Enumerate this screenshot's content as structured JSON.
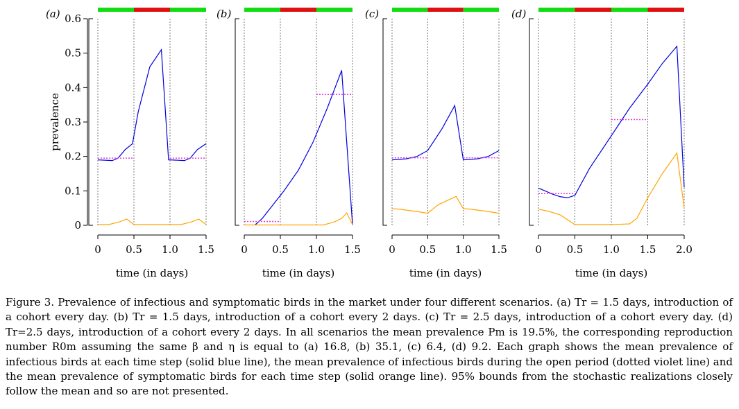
{
  "colors": {
    "infectious": "#0000dd",
    "open_mean": "#e040e0",
    "symptomatic": "#ffa500",
    "open_bar": "#11dd11",
    "closed_bar": "#dd1111"
  },
  "y_axis": {
    "label": "prevalence",
    "ticks": [
      "0",
      "0.1",
      "0.2",
      "0.3",
      "0.4",
      "0.5",
      "0.6"
    ]
  },
  "caption": {
    "figure_label": "Figure 3.",
    "text": "Prevalence of infectious and symptomatic birds in the market under four different scenarios. (a) Tr = 1.5 days, introduction of a cohort every day. (b) Tr = 1.5 days, introduction of a cohort every 2 days. (c) Tr = 2.5 days, introduction of a cohort every day. (d) Tr=2.5 days, introduction of a cohort every 2 days. In all scenarios the mean prevalence Pm is 19.5%, the corresponding reproduction number R0m assuming the same β and η is equal to (a) 16.8, (b) 35.1, (c) 6.4, (d) 9.2. Each graph shows the mean prevalence of infectious birds at each time step (solid blue line), the mean prevalence of infectious birds during the open period (dotted violet line) and the mean prevalence of symptomatic birds for each time step (solid orange line). 95% bounds from the stochastic realizations closely follow the mean and so are not presented."
  },
  "chart_data": [
    {
      "type": "line",
      "panel": "(a)",
      "xlabel": "time (in days)",
      "ylabel": "prevalence",
      "xlim": [
        0,
        1.5
      ],
      "ylim": [
        0,
        0.6
      ],
      "x_ticks": [
        "0",
        "0.5",
        "1.0",
        "1.5"
      ],
      "day_boundaries": [
        0,
        0.5,
        1.0,
        1.5
      ],
      "market_state": [
        "open",
        "closed",
        "open"
      ],
      "series": [
        {
          "name": "infectious",
          "x": [
            0,
            0.2,
            0.28,
            0.38,
            0.48,
            0.56,
            0.72,
            0.88,
            0.98,
            1.0,
            1.2,
            1.28,
            1.38,
            1.5
          ],
          "y": [
            0.19,
            0.188,
            0.195,
            0.22,
            0.237,
            0.33,
            0.46,
            0.51,
            0.19,
            0.19,
            0.188,
            0.195,
            0.22,
            0.237
          ]
        },
        {
          "name": "symptomatic",
          "x": [
            0,
            0.15,
            0.3,
            0.4,
            0.5,
            1.0,
            1.15,
            1.3,
            1.4,
            1.5
          ],
          "y": [
            0.002,
            0.002,
            0.01,
            0.018,
            0.002,
            0.002,
            0.002,
            0.01,
            0.018,
            0.002
          ]
        },
        {
          "name": "open-period mean",
          "segments": [
            {
              "x": [
                0,
                0.5
              ],
              "y": 0.195
            },
            {
              "x": [
                1.0,
                1.5
              ],
              "y": 0.195
            }
          ]
        }
      ]
    },
    {
      "type": "line",
      "panel": "(b)",
      "xlabel": "time (in days)",
      "ylabel": "prevalence",
      "xlim": [
        0,
        1.5
      ],
      "ylim": [
        0,
        0.6
      ],
      "x_ticks": [
        "0",
        "0.5",
        "1.0",
        "1.5"
      ],
      "day_boundaries": [
        0,
        0.5,
        1.0,
        1.5
      ],
      "market_state": [
        "open",
        "closed",
        "open"
      ],
      "series": [
        {
          "name": "infectious",
          "x": [
            0.15,
            0.25,
            0.4,
            0.55,
            0.75,
            0.95,
            1.15,
            1.35,
            1.5
          ],
          "y": [
            0.001,
            0.02,
            0.06,
            0.1,
            0.16,
            0.24,
            0.34,
            0.45,
            0.002
          ]
        },
        {
          "name": "symptomatic",
          "x": [
            0,
            1.1,
            1.25,
            1.35,
            1.42,
            1.5
          ],
          "y": [
            0.001,
            0.001,
            0.01,
            0.02,
            0.036,
            0.002
          ]
        },
        {
          "name": "open-period mean",
          "segments": [
            {
              "x": [
                0,
                0.5
              ],
              "y": 0.011
            },
            {
              "x": [
                1.0,
                1.5
              ],
              "y": 0.38
            }
          ]
        }
      ]
    },
    {
      "type": "line",
      "panel": "(c)",
      "xlabel": "time (in days)",
      "ylabel": "prevalence",
      "xlim": [
        0,
        1.5
      ],
      "ylim": [
        0,
        0.6
      ],
      "x_ticks": [
        "0",
        "0.5",
        "1.0",
        "1.5"
      ],
      "day_boundaries": [
        0,
        0.5,
        1.0,
        1.5
      ],
      "market_state": [
        "open",
        "closed",
        "open"
      ],
      "series": [
        {
          "name": "infectious",
          "x": [
            0,
            0.2,
            0.35,
            0.5,
            0.7,
            0.88,
            1.0,
            1.2,
            1.35,
            1.5
          ],
          "y": [
            0.19,
            0.193,
            0.2,
            0.217,
            0.28,
            0.348,
            0.19,
            0.193,
            0.2,
            0.217
          ]
        },
        {
          "name": "symptomatic",
          "x": [
            0,
            0.1,
            0.2,
            0.35,
            0.5,
            0.65,
            0.9,
            1.0,
            1.1,
            1.2,
            1.35,
            1.5
          ],
          "y": [
            0.048,
            0.047,
            0.044,
            0.04,
            0.035,
            0.06,
            0.084,
            0.048,
            0.047,
            0.044,
            0.04,
            0.035
          ]
        },
        {
          "name": "open-period mean",
          "segments": [
            {
              "x": [
                0,
                0.5
              ],
              "y": 0.196
            },
            {
              "x": [
                1.0,
                1.5
              ],
              "y": 0.196
            }
          ]
        }
      ]
    },
    {
      "type": "line",
      "panel": "(d)",
      "xlabel": "time (in days)",
      "ylabel": "prevalence",
      "xlim": [
        0,
        2.0
      ],
      "ylim": [
        0,
        0.6
      ],
      "x_ticks": [
        "0",
        "0.5",
        "1.0",
        "1.5",
        "2.0"
      ],
      "day_boundaries": [
        0,
        0.5,
        1.0,
        1.5,
        2.0
      ],
      "market_state": [
        "open",
        "closed",
        "open",
        "closed"
      ],
      "series": [
        {
          "name": "infectious",
          "x": [
            0,
            0.2,
            0.3,
            0.4,
            0.5,
            0.7,
            1.0,
            1.25,
            1.5,
            1.7,
            1.9,
            2.0
          ],
          "y": [
            0.108,
            0.09,
            0.083,
            0.08,
            0.087,
            0.165,
            0.26,
            0.34,
            0.41,
            0.47,
            0.52,
            0.11
          ]
        },
        {
          "name": "symptomatic",
          "x": [
            0,
            0.15,
            0.3,
            0.5,
            1.0,
            1.25,
            1.35,
            1.5,
            1.7,
            1.9,
            2.0
          ],
          "y": [
            0.047,
            0.04,
            0.03,
            0.002,
            0.002,
            0.004,
            0.02,
            0.08,
            0.15,
            0.21,
            0.05
          ]
        },
        {
          "name": "open-period mean",
          "segments": [
            {
              "x": [
                0,
                0.5
              ],
              "y": 0.092
            },
            {
              "x": [
                1.0,
                1.5
              ],
              "y": 0.307
            }
          ]
        }
      ]
    }
  ]
}
